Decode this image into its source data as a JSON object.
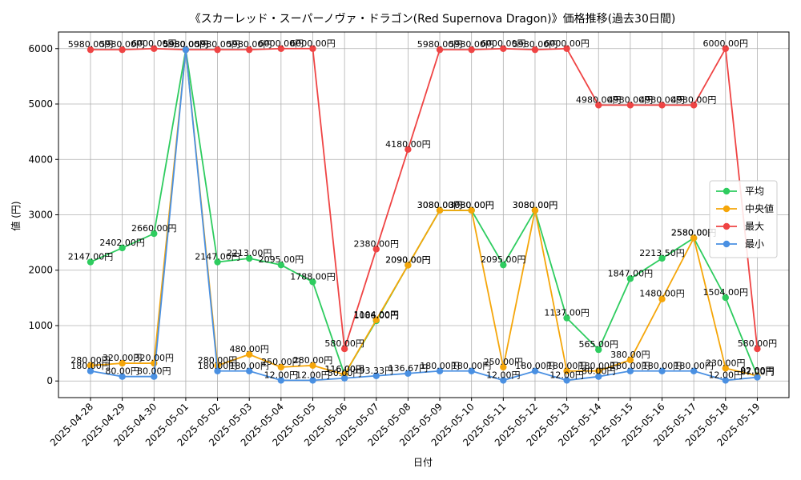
{
  "chart_data": {
    "type": "line",
    "title": "《スカーレッド・スーパーノヴァ・ドラゴン(Red Supernova Dragon)》価格推移(過去30日間)",
    "xlabel": "日付",
    "ylabel": "値 (円)",
    "ylim": [
      -300,
      6300
    ],
    "yticks": [
      0,
      1000,
      2000,
      3000,
      4000,
      5000,
      6000
    ],
    "grid": true,
    "legend_position": "center-right",
    "label_suffix": "円",
    "categories": [
      "2025-04-28",
      "2025-04-29",
      "2025-04-30",
      "2025-05-01",
      "2025-05-02",
      "2025-05-03",
      "2025-05-04",
      "2025-05-05",
      "2025-05-06",
      "2025-05-07",
      "2025-05-08",
      "2025-05-09",
      "2025-05-10",
      "2025-05-11",
      "2025-05-12",
      "2025-05-13",
      "2025-05-14",
      "2025-05-15",
      "2025-05-16",
      "2025-05-17",
      "2025-05-18",
      "2025-05-19"
    ],
    "series": [
      {
        "name": "平均",
        "color": "#2ecc5f",
        "values": [
          2147.0,
          2402.0,
          2660.0,
          5980.0,
          2147.0,
          2213.0,
          2095.0,
          1788.0,
          116.0,
          1086.0,
          2090.0,
          3080.0,
          3080.0,
          2095.0,
          3080.0,
          1137.0,
          565.0,
          1847.0,
          2213.5,
          2580.0,
          1504.0,
          92.0
        ]
      },
      {
        "name": "中央値",
        "color": "#f5a60a",
        "values": [
          280.0,
          320.0,
          320.0,
          5980.0,
          280.0,
          480.0,
          250.0,
          280.0,
          116.0,
          1104.0,
          2090.0,
          3080.0,
          3080.0,
          250.0,
          3080.0,
          180.0,
          180.0,
          380.0,
          1480.0,
          2580.0,
          230.0,
          92.0
        ]
      },
      {
        "name": "最大",
        "color": "#ef4444",
        "values": [
          5980.0,
          5980.0,
          6000.0,
          5980.0,
          5980.0,
          5980.0,
          6000.0,
          6000.0,
          580.0,
          2380.0,
          4180.0,
          5980.0,
          5980.0,
          6000.0,
          5980.0,
          6000.0,
          4980.0,
          4980.0,
          4980.0,
          4980.0,
          6000.0,
          580.0
        ]
      },
      {
        "name": "最小",
        "color": "#4a90e2",
        "values": [
          180.0,
          80.0,
          80.0,
          5980.0,
          180.0,
          180.0,
          12.0,
          12.0,
          50.0,
          93.33,
          136.67,
          180.0,
          180.0,
          12.0,
          180.0,
          12.0,
          80.0,
          180.0,
          180.0,
          180.0,
          12.0,
          67.0
        ]
      }
    ]
  }
}
